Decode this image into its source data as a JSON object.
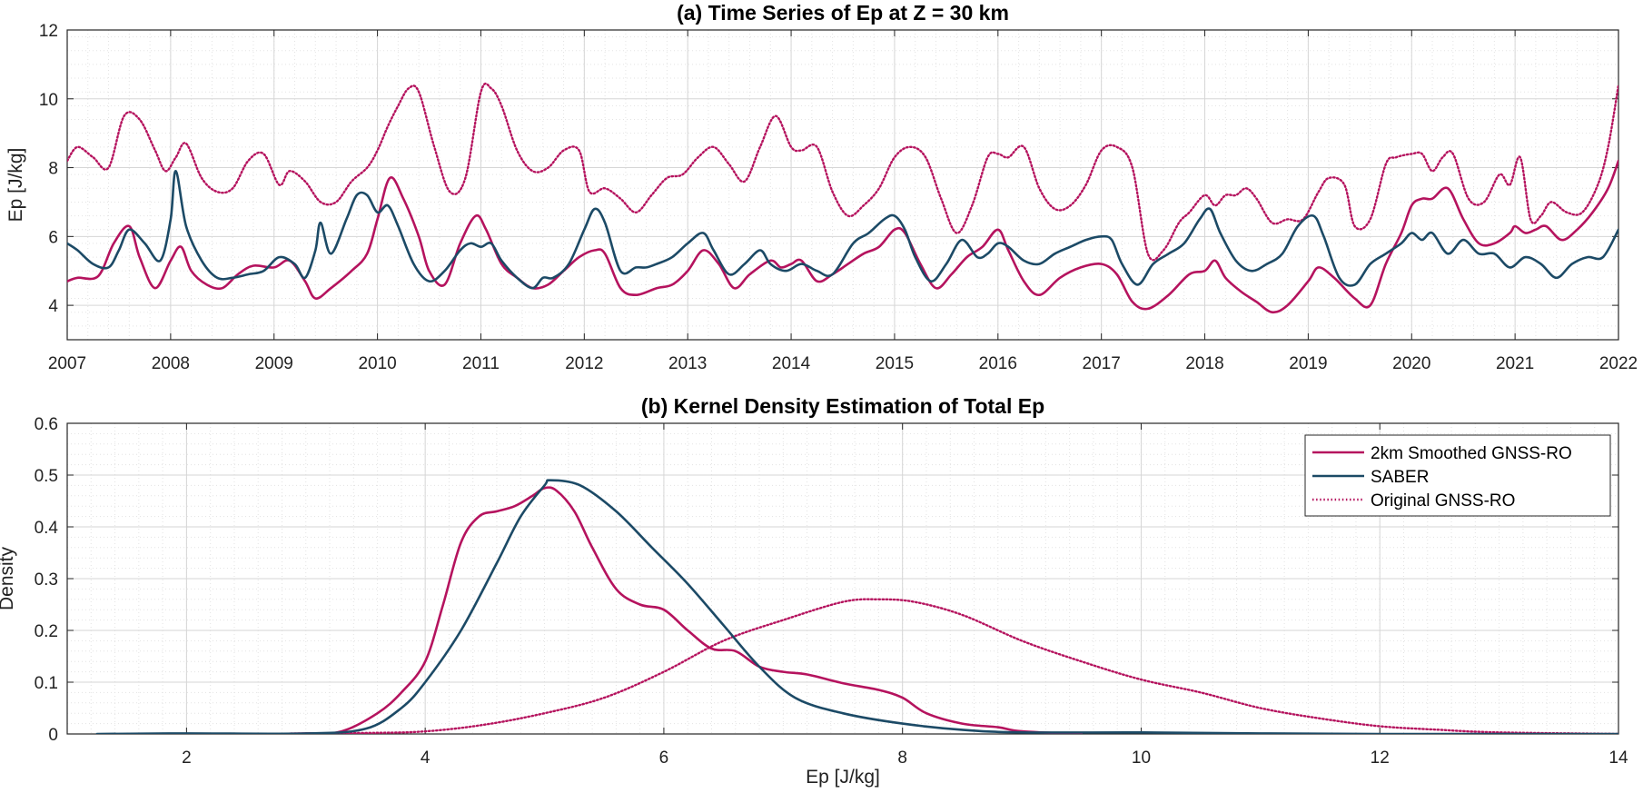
{
  "colors": {
    "gnss": "#B5135E",
    "saber": "#1C4A66",
    "grid": "#e6e6e6",
    "minor": "#f1f1f1",
    "axis": "#262626"
  },
  "chart_data": [
    {
      "type": "line",
      "title": "(a) Time Series of Ep at Z = 30 km",
      "xlabel": "",
      "ylabel": "Ep [J/kg]",
      "xlim": [
        2007,
        2022
      ],
      "ylim": [
        3,
        12
      ],
      "xticks": [
        2007,
        2008,
        2009,
        2010,
        2011,
        2012,
        2013,
        2014,
        2015,
        2016,
        2017,
        2018,
        2019,
        2020,
        2021,
        2022
      ],
      "yticks": [
        4,
        6,
        8,
        10,
        12
      ],
      "grid": true,
      "series": [
        {
          "key": "gnss_smooth",
          "style": "solid",
          "color": "#B5135E",
          "x": [
            2007.0,
            2007.1,
            2007.3,
            2007.45,
            2007.6,
            2007.7,
            2007.85,
            2008.0,
            2008.1,
            2008.2,
            2008.35,
            2008.5,
            2008.65,
            2008.8,
            2009.0,
            2009.15,
            2009.3,
            2009.4,
            2009.55,
            2009.75,
            2009.9,
            2010.0,
            2010.12,
            2010.25,
            2010.4,
            2010.5,
            2010.65,
            2010.8,
            2010.95,
            2011.05,
            2011.2,
            2011.35,
            2011.5,
            2011.65,
            2011.8,
            2011.95,
            2012.1,
            2012.2,
            2012.35,
            2012.5,
            2012.7,
            2012.85,
            2013.0,
            2013.15,
            2013.3,
            2013.45,
            2013.6,
            2013.8,
            2013.9,
            2014.0,
            2014.1,
            2014.25,
            2014.4,
            2014.55,
            2014.7,
            2014.85,
            2015.0,
            2015.1,
            2015.25,
            2015.4,
            2015.55,
            2015.7,
            2015.85,
            2016.0,
            2016.1,
            2016.25,
            2016.4,
            2016.6,
            2016.8,
            2017.0,
            2017.15,
            2017.3,
            2017.45,
            2017.65,
            2017.85,
            2018.0,
            2018.1,
            2018.2,
            2018.35,
            2018.5,
            2018.65,
            2018.8,
            2019.0,
            2019.1,
            2019.25,
            2019.45,
            2019.6,
            2019.75,
            2019.9,
            2020.0,
            2020.1,
            2020.2,
            2020.35,
            2020.5,
            2020.65,
            2020.8,
            2020.95,
            2021.0,
            2021.1,
            2021.2,
            2021.3,
            2021.45,
            2021.6,
            2021.75,
            2021.9,
            2022.0
          ],
          "y": [
            4.7,
            4.8,
            4.85,
            5.8,
            6.3,
            5.4,
            4.5,
            5.3,
            5.7,
            5.0,
            4.6,
            4.5,
            4.9,
            5.15,
            5.1,
            5.3,
            4.7,
            4.2,
            4.5,
            5.0,
            5.5,
            6.5,
            7.7,
            7.1,
            6.0,
            5.0,
            4.6,
            5.8,
            6.6,
            6.2,
            5.2,
            4.8,
            4.5,
            4.6,
            5.0,
            5.4,
            5.6,
            5.5,
            4.5,
            4.3,
            4.5,
            4.6,
            5.0,
            5.6,
            5.2,
            4.5,
            4.9,
            5.3,
            5.1,
            5.2,
            5.3,
            4.7,
            4.9,
            5.2,
            5.5,
            5.7,
            6.2,
            6.1,
            5.2,
            4.5,
            4.9,
            5.4,
            5.7,
            6.2,
            5.6,
            4.7,
            4.3,
            4.8,
            5.1,
            5.2,
            4.9,
            4.1,
            3.9,
            4.3,
            4.9,
            5.0,
            5.3,
            4.8,
            4.4,
            4.1,
            3.8,
            4.0,
            4.7,
            5.1,
            4.8,
            4.2,
            4.0,
            5.2,
            6.1,
            6.9,
            7.1,
            7.1,
            7.4,
            6.5,
            5.8,
            5.8,
            6.1,
            6.3,
            6.1,
            6.2,
            6.3,
            5.9,
            6.2,
            6.7,
            7.4,
            8.2
          ]
        },
        {
          "key": "saber",
          "style": "solid",
          "color": "#1C4A66",
          "x": [
            2007.0,
            2007.1,
            2007.25,
            2007.4,
            2007.5,
            2007.6,
            2007.75,
            2007.9,
            2008.0,
            2008.05,
            2008.15,
            2008.3,
            2008.45,
            2008.6,
            2008.75,
            2008.9,
            2009.05,
            2009.2,
            2009.3,
            2009.4,
            2009.45,
            2009.55,
            2009.7,
            2009.8,
            2009.9,
            2010.0,
            2010.1,
            2010.2,
            2010.35,
            2010.5,
            2010.65,
            2010.8,
            2010.9,
            2011.0,
            2011.1,
            2011.2,
            2011.35,
            2011.5,
            2011.6,
            2011.7,
            2011.85,
            2012.0,
            2012.1,
            2012.2,
            2012.35,
            2012.5,
            2012.6,
            2012.7,
            2012.85,
            2013.0,
            2013.15,
            2013.25,
            2013.4,
            2013.55,
            2013.7,
            2013.8,
            2013.95,
            2014.1,
            2014.25,
            2014.4,
            2014.6,
            2014.75,
            2014.9,
            2015.0,
            2015.1,
            2015.2,
            2015.35,
            2015.5,
            2015.65,
            2015.8,
            2015.9,
            2016.0,
            2016.1,
            2016.25,
            2016.4,
            2016.55,
            2016.7,
            2016.85,
            2017.0,
            2017.1,
            2017.2,
            2017.35,
            2017.5,
            2017.65,
            2017.8,
            2017.95,
            2018.05,
            2018.15,
            2018.3,
            2018.45,
            2018.6,
            2018.75,
            2018.9,
            2019.05,
            2019.15,
            2019.3,
            2019.45,
            2019.6,
            2019.75,
            2019.9,
            2020.0,
            2020.1,
            2020.2,
            2020.35,
            2020.5,
            2020.65,
            2020.8,
            2020.95,
            2021.1,
            2021.25,
            2021.4,
            2021.55,
            2021.7,
            2021.85,
            2022.0
          ],
          "y": [
            5.8,
            5.6,
            5.2,
            5.1,
            5.6,
            6.2,
            5.8,
            5.3,
            6.5,
            7.9,
            6.3,
            5.3,
            4.8,
            4.8,
            4.9,
            5.0,
            5.4,
            5.2,
            4.8,
            5.6,
            6.4,
            5.5,
            6.5,
            7.2,
            7.2,
            6.7,
            6.9,
            6.3,
            5.2,
            4.7,
            5.0,
            5.6,
            5.8,
            5.7,
            5.8,
            5.3,
            4.8,
            4.5,
            4.8,
            4.8,
            5.2,
            6.2,
            6.8,
            6.4,
            5.0,
            5.1,
            5.1,
            5.2,
            5.4,
            5.8,
            6.1,
            5.6,
            4.9,
            5.2,
            5.6,
            5.2,
            5.0,
            5.2,
            5.0,
            4.9,
            5.8,
            6.1,
            6.5,
            6.6,
            6.2,
            5.4,
            4.7,
            5.2,
            5.9,
            5.4,
            5.5,
            5.8,
            5.7,
            5.3,
            5.2,
            5.5,
            5.7,
            5.9,
            6.0,
            5.9,
            5.2,
            4.6,
            5.2,
            5.5,
            5.8,
            6.5,
            6.8,
            6.1,
            5.3,
            5.0,
            5.2,
            5.5,
            6.3,
            6.6,
            6.0,
            4.8,
            4.6,
            5.2,
            5.5,
            5.8,
            6.1,
            5.9,
            6.1,
            5.5,
            5.9,
            5.5,
            5.5,
            5.1,
            5.4,
            5.2,
            4.8,
            5.2,
            5.4,
            5.4,
            6.2
          ]
        },
        {
          "key": "gnss_orig",
          "style": "dotted",
          "color": "#B5135E",
          "x": [
            2007.0,
            2007.1,
            2007.25,
            2007.4,
            2007.55,
            2007.7,
            2007.85,
            2007.95,
            2008.05,
            2008.15,
            2008.3,
            2008.45,
            2008.6,
            2008.75,
            2008.9,
            2009.05,
            2009.15,
            2009.3,
            2009.45,
            2009.6,
            2009.75,
            2009.9,
            2010.0,
            2010.1,
            2010.2,
            2010.3,
            2010.4,
            2010.55,
            2010.7,
            2010.85,
            2011.0,
            2011.1,
            2011.2,
            2011.35,
            2011.5,
            2011.65,
            2011.8,
            2011.95,
            2012.05,
            2012.2,
            2012.35,
            2012.5,
            2012.65,
            2012.8,
            2012.95,
            2013.1,
            2013.25,
            2013.4,
            2013.55,
            2013.7,
            2013.85,
            2014.0,
            2014.1,
            2014.25,
            2014.4,
            2014.55,
            2014.7,
            2014.85,
            2015.0,
            2015.15,
            2015.3,
            2015.45,
            2015.6,
            2015.75,
            2015.9,
            2016.0,
            2016.1,
            2016.25,
            2016.4,
            2016.55,
            2016.7,
            2016.85,
            2017.0,
            2017.15,
            2017.3,
            2017.45,
            2017.6,
            2017.75,
            2017.85,
            2018.0,
            2018.1,
            2018.2,
            2018.3,
            2018.4,
            2018.5,
            2018.65,
            2018.8,
            2018.95,
            2019.1,
            2019.2,
            2019.35,
            2019.45,
            2019.6,
            2019.75,
            2019.85,
            2020.0,
            2020.1,
            2020.2,
            2020.3,
            2020.4,
            2020.55,
            2020.7,
            2020.85,
            2020.95,
            2021.05,
            2021.15,
            2021.25,
            2021.35,
            2021.5,
            2021.65,
            2021.8,
            2021.9,
            2022.0
          ],
          "y": [
            8.2,
            8.6,
            8.3,
            8.0,
            9.5,
            9.4,
            8.5,
            7.9,
            8.3,
            8.7,
            7.7,
            7.3,
            7.4,
            8.2,
            8.4,
            7.5,
            7.9,
            7.6,
            7.0,
            7.0,
            7.6,
            8.0,
            8.5,
            9.2,
            9.8,
            10.3,
            10.2,
            8.6,
            7.3,
            7.7,
            10.2,
            10.3,
            9.8,
            8.5,
            7.9,
            8.0,
            8.5,
            8.5,
            7.3,
            7.4,
            7.1,
            6.7,
            7.2,
            7.7,
            7.8,
            8.3,
            8.6,
            8.1,
            7.6,
            8.6,
            9.5,
            8.6,
            8.5,
            8.6,
            7.3,
            6.6,
            6.9,
            7.4,
            8.3,
            8.6,
            8.3,
            7.1,
            6.1,
            6.9,
            8.3,
            8.4,
            8.3,
            8.6,
            7.4,
            6.8,
            6.9,
            7.5,
            8.5,
            8.6,
            8.0,
            5.5,
            5.6,
            6.4,
            6.7,
            7.2,
            6.9,
            7.2,
            7.2,
            7.4,
            7.1,
            6.4,
            6.5,
            6.5,
            7.3,
            7.7,
            7.5,
            6.3,
            6.5,
            8.1,
            8.3,
            8.4,
            8.4,
            7.9,
            8.3,
            8.4,
            7.1,
            7.0,
            7.8,
            7.5,
            8.3,
            6.5,
            6.6,
            7.0,
            6.7,
            6.7,
            7.5,
            8.6,
            10.4
          ]
        }
      ]
    },
    {
      "type": "line",
      "title": "(b) Kernel Density Estimation of Total Ep",
      "xlabel": "Ep [J/kg]",
      "ylabel": "Density",
      "xlim": [
        1,
        14
      ],
      "ylim": [
        0,
        0.6
      ],
      "xticks": [
        2,
        4,
        6,
        8,
        10,
        12,
        14
      ],
      "yticks": [
        0,
        0.1,
        0.2,
        0.3,
        0.4,
        0.5,
        0.6
      ],
      "grid": true,
      "legend_position": "top-right",
      "series": [
        {
          "name": "2km Smoothed GNSS-RO",
          "key": "gnss_smooth",
          "style": "solid",
          "color": "#B5135E",
          "x": [
            2.5,
            3.0,
            3.3,
            3.6,
            3.8,
            4.0,
            4.15,
            4.3,
            4.45,
            4.6,
            4.75,
            4.9,
            5.0,
            5.1,
            5.25,
            5.4,
            5.6,
            5.8,
            6.0,
            6.2,
            6.4,
            6.6,
            6.8,
            7.0,
            7.2,
            7.5,
            7.8,
            8.0,
            8.2,
            8.5,
            8.8,
            9.0,
            9.5
          ],
          "y": [
            0.0,
            0.001,
            0.005,
            0.04,
            0.08,
            0.14,
            0.25,
            0.37,
            0.42,
            0.43,
            0.44,
            0.46,
            0.475,
            0.47,
            0.43,
            0.36,
            0.28,
            0.25,
            0.24,
            0.2,
            0.165,
            0.16,
            0.13,
            0.12,
            0.115,
            0.098,
            0.085,
            0.07,
            0.04,
            0.02,
            0.013,
            0.005,
            0.0
          ]
        },
        {
          "name": "SABER",
          "key": "saber",
          "style": "solid",
          "color": "#1C4A66",
          "x": [
            1.25,
            2.0,
            3.0,
            3.5,
            3.8,
            4.0,
            4.3,
            4.6,
            4.8,
            5.0,
            5.05,
            5.3,
            5.6,
            5.9,
            6.2,
            6.5,
            6.8,
            7.1,
            7.5,
            8.0,
            8.5,
            9.0,
            10.0,
            11.0,
            12.0,
            13.0,
            14.0
          ],
          "y": [
            0.0,
            0.001,
            0.001,
            0.01,
            0.05,
            0.1,
            0.2,
            0.33,
            0.42,
            0.48,
            0.49,
            0.48,
            0.43,
            0.36,
            0.29,
            0.21,
            0.13,
            0.07,
            0.04,
            0.02,
            0.008,
            0.003,
            0.003,
            0.001,
            0.0,
            0.0,
            0.0
          ],
          "_note": ""
        },
        {
          "name": "Original GNSS-RO",
          "key": "gnss_orig",
          "style": "dotted",
          "color": "#B5135E",
          "x": [
            2.5,
            3.5,
            4.0,
            4.5,
            5.0,
            5.5,
            6.0,
            6.5,
            7.0,
            7.5,
            7.8,
            8.1,
            8.5,
            9.0,
            9.5,
            10.0,
            10.5,
            11.0,
            11.5,
            12.0,
            12.5,
            13.0,
            14.0
          ],
          "y": [
            0.0,
            0.002,
            0.005,
            0.018,
            0.04,
            0.07,
            0.12,
            0.18,
            0.22,
            0.255,
            0.26,
            0.255,
            0.23,
            0.18,
            0.14,
            0.105,
            0.08,
            0.05,
            0.03,
            0.015,
            0.008,
            0.003,
            0.0
          ]
        }
      ]
    }
  ]
}
